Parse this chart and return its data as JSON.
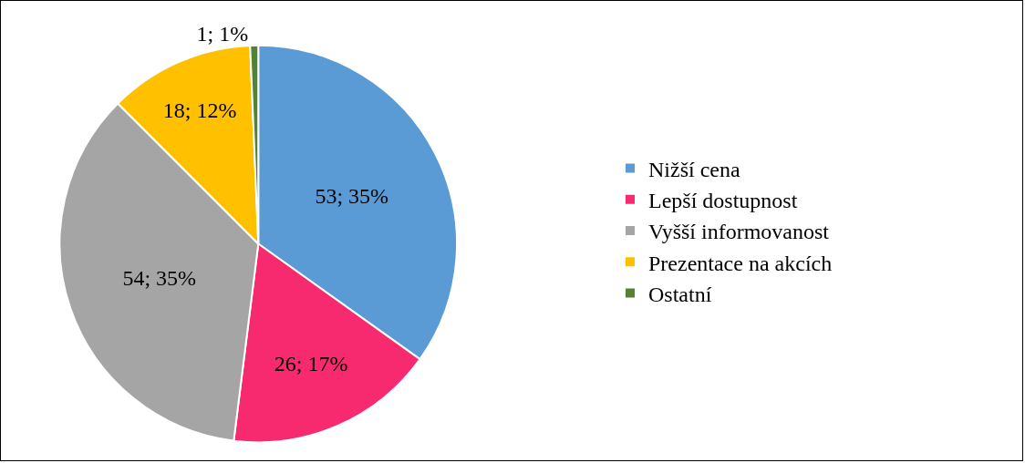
{
  "chart_data": {
    "type": "pie",
    "categories": [
      "Nižší cena",
      "Lepší dostupnost",
      "Vyšší informovanost",
      "Prezentace na akcích",
      "Ostatní"
    ],
    "values": [
      53,
      26,
      54,
      18,
      1
    ],
    "colors": [
      "#5b9bd5",
      "#f7296f",
      "#a5a5a5",
      "#ffc000",
      "#548235"
    ],
    "value_labels": [
      "53; 35%",
      "26; 17%",
      "54; 35%",
      "18; 12%",
      "1; 1%"
    ],
    "legend": "right"
  }
}
